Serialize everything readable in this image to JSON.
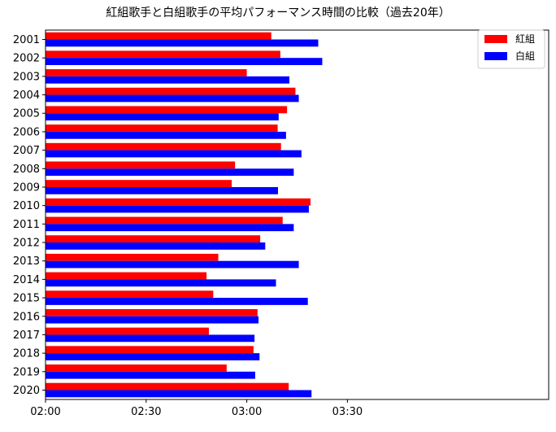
{
  "chart_data": {
    "type": "bar",
    "orientation": "horizontal",
    "title": "紅組歌手と白組歌手の平均パフォーマンス時間の比較（過去20年）",
    "xlabel": "",
    "ylabel": "",
    "categories": [
      "2001",
      "2002",
      "2003",
      "2004",
      "2005",
      "2006",
      "2007",
      "2008",
      "2009",
      "2010",
      "2011",
      "2012",
      "2013",
      "2014",
      "2015",
      "2016",
      "2017",
      "2018",
      "2019",
      "2020"
    ],
    "x_axis": {
      "unit": "minutes since 02:00",
      "range_minutes": [
        0,
        150
      ],
      "ticks": [
        {
          "minutes": 0,
          "label": "02:00"
        },
        {
          "minutes": 30,
          "label": "02:30"
        },
        {
          "minutes": 60,
          "label": "03:00"
        },
        {
          "minutes": 90,
          "label": "03:30"
        }
      ]
    },
    "series": [
      {
        "name": "紅組",
        "color": "#ff0000",
        "values_minutes": [
          67.3,
          70.0,
          60.0,
          74.5,
          72.0,
          69.2,
          70.2,
          56.5,
          55.5,
          79.0,
          70.7,
          64.0,
          51.5,
          48.0,
          50.0,
          63.2,
          48.7,
          62.0,
          54.0,
          72.5
        ]
      },
      {
        "name": "白組",
        "color": "#0000ff",
        "values_minutes": [
          81.3,
          82.5,
          72.7,
          75.5,
          69.5,
          71.7,
          76.3,
          74.0,
          69.3,
          78.5,
          74.0,
          65.5,
          75.5,
          68.7,
          78.2,
          63.5,
          62.3,
          63.8,
          62.5,
          79.3
        ]
      }
    ],
    "legend": {
      "position": "top-right",
      "entries": [
        "紅組",
        "白組"
      ]
    },
    "grid": false
  }
}
